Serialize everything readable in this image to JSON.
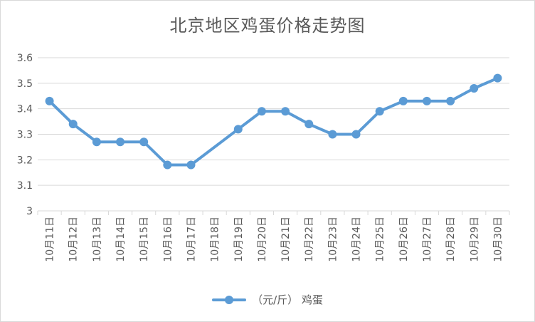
{
  "chart_data": {
    "type": "line",
    "title": "北京地区鸡蛋价格走势图",
    "xlabel": "",
    "ylabel": "",
    "ylim": [
      3,
      3.6
    ],
    "yticks": [
      "3",
      "3.1",
      "3.2",
      "3.3",
      "3.4",
      "3.5",
      "3.6"
    ],
    "categories": [
      "10月11日",
      "10月12日",
      "10月13日",
      "10月14日",
      "10月15日",
      "10月16日",
      "10月17日",
      "10月18日",
      "10月19日",
      "10月20日",
      "10月21日",
      "10月22日",
      "10月23日",
      "10月24日",
      "10月25日",
      "10月26日",
      "10月27日",
      "10月28日",
      "10月29日",
      "10月30日"
    ],
    "series": [
      {
        "name": "（元/斤） 鸡蛋",
        "color": "#5b9bd5",
        "values": [
          3.43,
          3.34,
          3.27,
          3.27,
          3.27,
          3.18,
          3.18,
          null,
          3.32,
          3.39,
          3.39,
          3.34,
          3.3,
          3.3,
          3.39,
          3.43,
          3.43,
          3.43,
          3.48,
          3.52
        ]
      }
    ],
    "grid": true,
    "legend": "bottom"
  }
}
